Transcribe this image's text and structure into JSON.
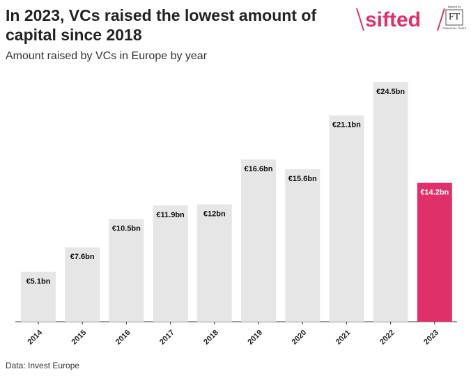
{
  "chart_data": {
    "type": "bar",
    "title": "In 2023, VCs raised the lowest amount of capital since 2018",
    "subtitle": "Amount raised by VCs in Europe by year",
    "source": "Data: Invest Europe",
    "logo": {
      "brand": "sifted",
      "backed_by": "Backed by",
      "ft": "FT",
      "ft_name": "FINANCIAL TIMES"
    },
    "categories": [
      "2014",
      "2015",
      "2016",
      "2017",
      "2018",
      "2019",
      "2020",
      "2021",
      "2022",
      "2023"
    ],
    "values": [
      5.1,
      7.6,
      10.5,
      11.9,
      12,
      16.6,
      15.6,
      21.1,
      24.5,
      14.2
    ],
    "value_labels": [
      "€5.1bn",
      "€7.6bn",
      "€10.5bn",
      "€11.9bn",
      "€12bn",
      "€16.6bn",
      "€15.6bn",
      "€21.1bn",
      "€24.5bn",
      "€14.2bn"
    ],
    "colors": [
      "#e6e6e6",
      "#e6e6e6",
      "#e6e6e6",
      "#e6e6e6",
      "#e6e6e6",
      "#e6e6e6",
      "#e6e6e6",
      "#e6e6e6",
      "#e6e6e6",
      "#e0306a"
    ],
    "ylim": [
      0,
      25
    ]
  }
}
